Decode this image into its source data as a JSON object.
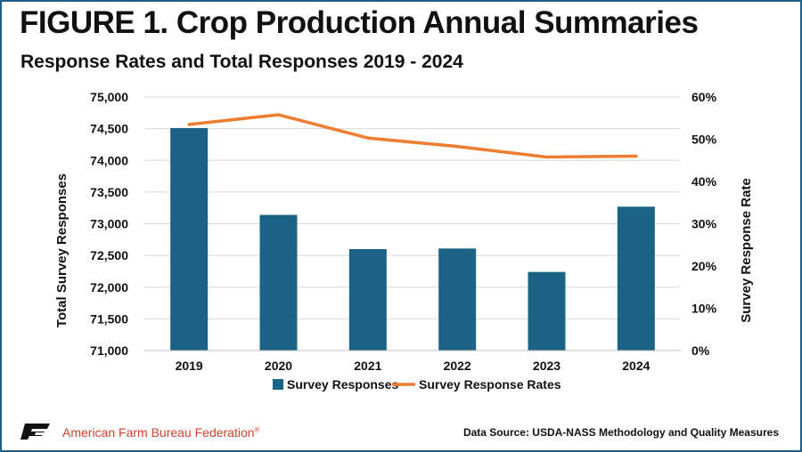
{
  "figure": {
    "title": "FIGURE 1. Crop Production Annual Summaries",
    "subtitle": "Response Rates and Total Responses 2019 - 2024"
  },
  "footer": {
    "org_name": "American Farm Bureau Federation",
    "org_mark": "®",
    "source": "Data Source:  USDA-NASS Methodology and Quality Measures",
    "logo_icon": "afbf-logo-icon"
  },
  "colors": {
    "bars": "#1b6384",
    "line": "#ed7d31",
    "grid": "#d9d9d9",
    "accent_border": "#1f5f86",
    "org_text": "#d1422b"
  },
  "chart_data": {
    "type": "bar",
    "categories": [
      "2019",
      "2020",
      "2021",
      "2022",
      "2023",
      "2024"
    ],
    "series": [
      {
        "name": "Survey Responses",
        "type": "bar",
        "axis": "left",
        "values": [
          74510,
          73140,
          72600,
          72610,
          72240,
          73270
        ]
      },
      {
        "name": "Survey Response Rates",
        "type": "line",
        "axis": "right",
        "values": [
          53.5,
          55.8,
          50.3,
          48.3,
          45.8,
          46.0
        ]
      }
    ],
    "ylabel": "Total Survey Responses",
    "y2label": "Survey Response Rate",
    "ylim": [
      71000,
      75000
    ],
    "y2lim": [
      0,
      60
    ],
    "yticks": [
      "71,000",
      "71,500",
      "72,000",
      "72,500",
      "73,000",
      "73,500",
      "74,000",
      "74,500",
      "75,000"
    ],
    "y2ticks": [
      "0%",
      "10%",
      "20%",
      "30%",
      "40%",
      "50%",
      "60%"
    ],
    "grid": true,
    "legend": "bottom"
  }
}
